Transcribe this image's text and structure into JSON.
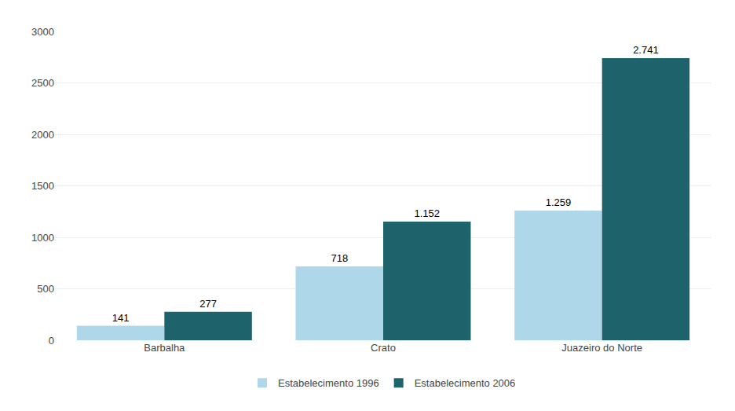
{
  "chart_data": {
    "type": "bar",
    "categories": [
      "Barbalha",
      "Crato",
      "Juazeiro do Norte"
    ],
    "series": [
      {
        "name": "Estabelecimento 1996",
        "color": "#aed8ea",
        "values": [
          141,
          718,
          1259
        ],
        "value_labels": [
          "141",
          "718",
          "1.259"
        ]
      },
      {
        "name": "Estabelecimento 2006",
        "color": "#1e636b",
        "values": [
          277,
          1152,
          2741
        ],
        "value_labels": [
          "277",
          "1.152",
          "2.741"
        ]
      }
    ],
    "ylim": [
      0,
      3000
    ],
    "yticks": [
      0,
      500,
      1000,
      1500,
      2000,
      2500,
      3000
    ],
    "grid": true,
    "legend": "bottom",
    "data_labels": true
  }
}
